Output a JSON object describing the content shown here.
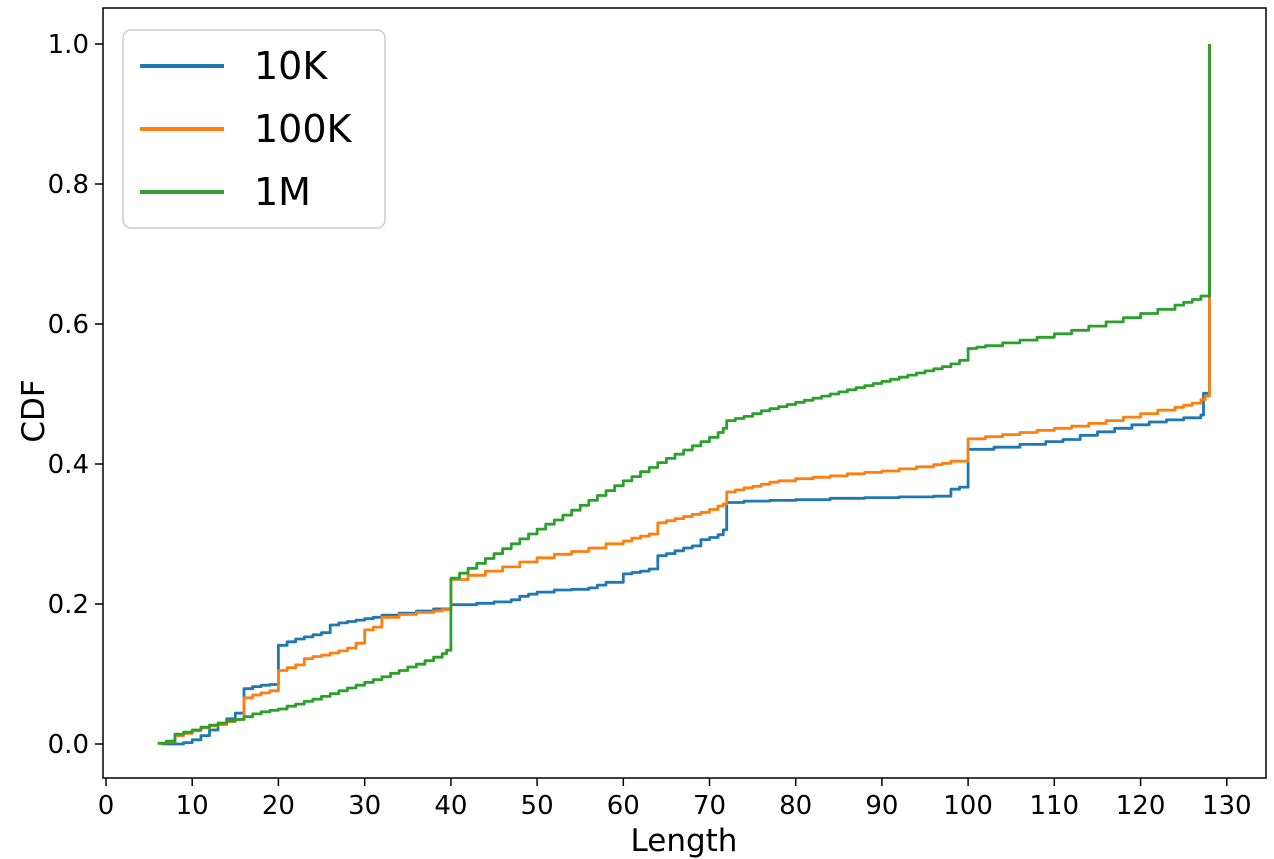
{
  "figure": {
    "background": "#ffffff",
    "spine_color": "#000000",
    "text_color": "#000000"
  },
  "legend": {
    "position": "upper left",
    "border_color": "#cccccc",
    "background": "#ffffff",
    "entries": [
      {
        "label": "10K",
        "color": "#1f77b4"
      },
      {
        "label": "100K",
        "color": "#ff7f0e"
      },
      {
        "label": "1M",
        "color": "#2ca02c"
      }
    ]
  },
  "chart_data": {
    "type": "line",
    "title": "",
    "xlabel": "Length",
    "ylabel": "CDF",
    "grid": false,
    "step_mode": "post",
    "xlim": [
      -0.35,
      134.55
    ],
    "ylim": [
      -0.0486,
      1.0514
    ],
    "x_ticks": [
      0,
      10,
      20,
      30,
      40,
      50,
      60,
      70,
      80,
      90,
      100,
      110,
      120,
      130
    ],
    "x_tick_labels": [
      "0",
      "10",
      "20",
      "30",
      "40",
      "50",
      "60",
      "70",
      "80",
      "90",
      "100",
      "110",
      "120",
      "130"
    ],
    "y_ticks": [
      0.0,
      0.2,
      0.4,
      0.6,
      0.8,
      1.0
    ],
    "y_tick_labels": [
      "0.0",
      "0.2",
      "0.4",
      "0.6",
      "0.8",
      "1.0"
    ],
    "legend_position": "upper left",
    "series": [
      {
        "name": "10K",
        "color": "#1f77b4",
        "points": [
          [
            6.5,
            0.0
          ],
          [
            9,
            0.002
          ],
          [
            10,
            0.006
          ],
          [
            11,
            0.012
          ],
          [
            12,
            0.02
          ],
          [
            13,
            0.028
          ],
          [
            14,
            0.036
          ],
          [
            15,
            0.044
          ],
          [
            16,
            0.079
          ],
          [
            17,
            0.082
          ],
          [
            18,
            0.084
          ],
          [
            19,
            0.085
          ],
          [
            20,
            0.141
          ],
          [
            21,
            0.146
          ],
          [
            22,
            0.15
          ],
          [
            23,
            0.153
          ],
          [
            24,
            0.156
          ],
          [
            25,
            0.159
          ],
          [
            26,
            0.17
          ],
          [
            27,
            0.173
          ],
          [
            28,
            0.175
          ],
          [
            29,
            0.177
          ],
          [
            30,
            0.179
          ],
          [
            31,
            0.181
          ],
          [
            32,
            0.184
          ],
          [
            34,
            0.187
          ],
          [
            36,
            0.19
          ],
          [
            38,
            0.193
          ],
          [
            40,
            0.199
          ],
          [
            43,
            0.201
          ],
          [
            45,
            0.203
          ],
          [
            47,
            0.206
          ],
          [
            48,
            0.211
          ],
          [
            49,
            0.214
          ],
          [
            50,
            0.217
          ],
          [
            52,
            0.22
          ],
          [
            54,
            0.221
          ],
          [
            56,
            0.223
          ],
          [
            57,
            0.227
          ],
          [
            58,
            0.231
          ],
          [
            60,
            0.243
          ],
          [
            61,
            0.245
          ],
          [
            62,
            0.247
          ],
          [
            63,
            0.25
          ],
          [
            64,
            0.269
          ],
          [
            65,
            0.272
          ],
          [
            66,
            0.276
          ],
          [
            67,
            0.28
          ],
          [
            68,
            0.283
          ],
          [
            69,
            0.292
          ],
          [
            70,
            0.295
          ],
          [
            71,
            0.299
          ],
          [
            71.6,
            0.306
          ],
          [
            72,
            0.345
          ],
          [
            74,
            0.347
          ],
          [
            77,
            0.348
          ],
          [
            80,
            0.349
          ],
          [
            84,
            0.351
          ],
          [
            88,
            0.352
          ],
          [
            92,
            0.353
          ],
          [
            96,
            0.354
          ],
          [
            98,
            0.364
          ],
          [
            99,
            0.367
          ],
          [
            100,
            0.421
          ],
          [
            103,
            0.424
          ],
          [
            106,
            0.428
          ],
          [
            109,
            0.432
          ],
          [
            111,
            0.435
          ],
          [
            113,
            0.441
          ],
          [
            115,
            0.446
          ],
          [
            117,
            0.451
          ],
          [
            119,
            0.456
          ],
          [
            121,
            0.46
          ],
          [
            123,
            0.463
          ],
          [
            125,
            0.466
          ],
          [
            127,
            0.47
          ],
          [
            127.3,
            0.501
          ],
          [
            128,
            1.0
          ]
        ]
      },
      {
        "name": "100K",
        "color": "#ff7f0e",
        "points": [
          [
            6,
            0.001
          ],
          [
            7,
            0.003
          ],
          [
            8,
            0.012
          ],
          [
            9,
            0.015
          ],
          [
            10,
            0.019
          ],
          [
            11,
            0.023
          ],
          [
            12,
            0.026
          ],
          [
            13,
            0.029
          ],
          [
            14,
            0.032
          ],
          [
            15,
            0.035
          ],
          [
            16,
            0.066
          ],
          [
            17,
            0.07
          ],
          [
            18,
            0.073
          ],
          [
            19,
            0.076
          ],
          [
            20,
            0.105
          ],
          [
            21,
            0.109
          ],
          [
            22,
            0.113
          ],
          [
            23,
            0.122
          ],
          [
            24,
            0.125
          ],
          [
            25,
            0.127
          ],
          [
            26,
            0.13
          ],
          [
            27,
            0.133
          ],
          [
            28,
            0.137
          ],
          [
            29,
            0.144
          ],
          [
            30,
            0.163
          ],
          [
            31,
            0.167
          ],
          [
            32,
            0.181
          ],
          [
            34,
            0.185
          ],
          [
            36,
            0.188
          ],
          [
            38,
            0.19
          ],
          [
            39,
            0.192
          ],
          [
            40,
            0.235
          ],
          [
            42,
            0.241
          ],
          [
            44,
            0.247
          ],
          [
            46,
            0.253
          ],
          [
            48,
            0.26
          ],
          [
            50,
            0.266
          ],
          [
            52,
            0.271
          ],
          [
            54,
            0.275
          ],
          [
            56,
            0.28
          ],
          [
            58,
            0.286
          ],
          [
            60,
            0.29
          ],
          [
            61,
            0.294
          ],
          [
            62,
            0.297
          ],
          [
            63,
            0.3
          ],
          [
            64,
            0.316
          ],
          [
            65,
            0.319
          ],
          [
            66,
            0.322
          ],
          [
            67,
            0.325
          ],
          [
            68,
            0.328
          ],
          [
            69,
            0.331
          ],
          [
            70,
            0.335
          ],
          [
            71,
            0.34
          ],
          [
            71.6,
            0.343
          ],
          [
            72,
            0.36
          ],
          [
            73,
            0.363
          ],
          [
            74,
            0.366
          ],
          [
            75,
            0.368
          ],
          [
            76,
            0.371
          ],
          [
            77,
            0.374
          ],
          [
            78,
            0.376
          ],
          [
            80,
            0.379
          ],
          [
            82,
            0.381
          ],
          [
            84,
            0.383
          ],
          [
            86,
            0.386
          ],
          [
            88,
            0.388
          ],
          [
            90,
            0.39
          ],
          [
            92,
            0.393
          ],
          [
            94,
            0.396
          ],
          [
            96,
            0.399
          ],
          [
            97,
            0.401
          ],
          [
            98,
            0.404
          ],
          [
            100,
            0.436
          ],
          [
            102,
            0.439
          ],
          [
            104,
            0.442
          ],
          [
            106,
            0.445
          ],
          [
            108,
            0.448
          ],
          [
            110,
            0.451
          ],
          [
            112,
            0.454
          ],
          [
            114,
            0.458
          ],
          [
            116,
            0.462
          ],
          [
            118,
            0.467
          ],
          [
            120,
            0.472
          ],
          [
            122,
            0.477
          ],
          [
            124,
            0.481
          ],
          [
            125,
            0.484
          ],
          [
            126,
            0.487
          ],
          [
            127,
            0.492
          ],
          [
            127.5,
            0.497
          ],
          [
            128,
            1.0
          ]
        ]
      },
      {
        "name": "1M",
        "color": "#2ca02c",
        "points": [
          [
            6,
            0.001
          ],
          [
            7,
            0.004
          ],
          [
            8,
            0.014
          ],
          [
            9,
            0.017
          ],
          [
            10,
            0.02
          ],
          [
            11,
            0.024
          ],
          [
            12,
            0.027
          ],
          [
            13,
            0.03
          ],
          [
            14,
            0.033
          ],
          [
            15,
            0.035
          ],
          [
            16,
            0.039
          ],
          [
            17,
            0.043
          ],
          [
            18,
            0.046
          ],
          [
            19,
            0.048
          ],
          [
            20,
            0.05
          ],
          [
            21,
            0.054
          ],
          [
            22,
            0.057
          ],
          [
            23,
            0.061
          ],
          [
            24,
            0.064
          ],
          [
            25,
            0.068
          ],
          [
            26,
            0.072
          ],
          [
            27,
            0.076
          ],
          [
            28,
            0.08
          ],
          [
            29,
            0.084
          ],
          [
            30,
            0.088
          ],
          [
            31,
            0.092
          ],
          [
            32,
            0.096
          ],
          [
            33,
            0.101
          ],
          [
            34,
            0.105
          ],
          [
            35,
            0.11
          ],
          [
            36,
            0.114
          ],
          [
            37,
            0.119
          ],
          [
            38,
            0.124
          ],
          [
            39,
            0.129
          ],
          [
            39.5,
            0.134
          ],
          [
            40,
            0.237
          ],
          [
            41,
            0.244
          ],
          [
            42,
            0.251
          ],
          [
            43,
            0.258
          ],
          [
            44,
            0.265
          ],
          [
            45,
            0.272
          ],
          [
            46,
            0.279
          ],
          [
            47,
            0.286
          ],
          [
            48,
            0.293
          ],
          [
            49,
            0.3
          ],
          [
            50,
            0.307
          ],
          [
            51,
            0.314
          ],
          [
            52,
            0.32
          ],
          [
            53,
            0.327
          ],
          [
            54,
            0.334
          ],
          [
            55,
            0.341
          ],
          [
            56,
            0.348
          ],
          [
            57,
            0.355
          ],
          [
            58,
            0.362
          ],
          [
            59,
            0.369
          ],
          [
            60,
            0.376
          ],
          [
            61,
            0.382
          ],
          [
            62,
            0.389
          ],
          [
            63,
            0.395
          ],
          [
            64,
            0.402
          ],
          [
            65,
            0.408
          ],
          [
            66,
            0.414
          ],
          [
            67,
            0.42
          ],
          [
            68,
            0.426
          ],
          [
            69,
            0.432
          ],
          [
            70,
            0.438
          ],
          [
            71,
            0.445
          ],
          [
            71.6,
            0.451
          ],
          [
            72,
            0.462
          ],
          [
            73,
            0.465
          ],
          [
            74,
            0.468
          ],
          [
            75,
            0.472
          ],
          [
            76,
            0.476
          ],
          [
            77,
            0.479
          ],
          [
            78,
            0.482
          ],
          [
            79,
            0.485
          ],
          [
            80,
            0.488
          ],
          [
            81,
            0.491
          ],
          [
            82,
            0.494
          ],
          [
            83,
            0.497
          ],
          [
            84,
            0.5
          ],
          [
            85,
            0.503
          ],
          [
            86,
            0.506
          ],
          [
            87,
            0.509
          ],
          [
            88,
            0.512
          ],
          [
            89,
            0.515
          ],
          [
            90,
            0.518
          ],
          [
            91,
            0.521
          ],
          [
            92,
            0.524
          ],
          [
            93,
            0.527
          ],
          [
            94,
            0.53
          ],
          [
            95,
            0.533
          ],
          [
            96,
            0.536
          ],
          [
            97,
            0.539
          ],
          [
            98,
            0.543
          ],
          [
            99,
            0.548
          ],
          [
            100,
            0.565
          ],
          [
            101,
            0.567
          ],
          [
            102,
            0.569
          ],
          [
            104,
            0.573
          ],
          [
            106,
            0.577
          ],
          [
            108,
            0.581
          ],
          [
            110,
            0.586
          ],
          [
            112,
            0.591
          ],
          [
            114,
            0.597
          ],
          [
            116,
            0.603
          ],
          [
            118,
            0.609
          ],
          [
            120,
            0.615
          ],
          [
            122,
            0.621
          ],
          [
            124,
            0.627
          ],
          [
            125,
            0.631
          ],
          [
            126,
            0.635
          ],
          [
            127,
            0.64
          ],
          [
            128,
            1.0
          ]
        ]
      }
    ]
  }
}
